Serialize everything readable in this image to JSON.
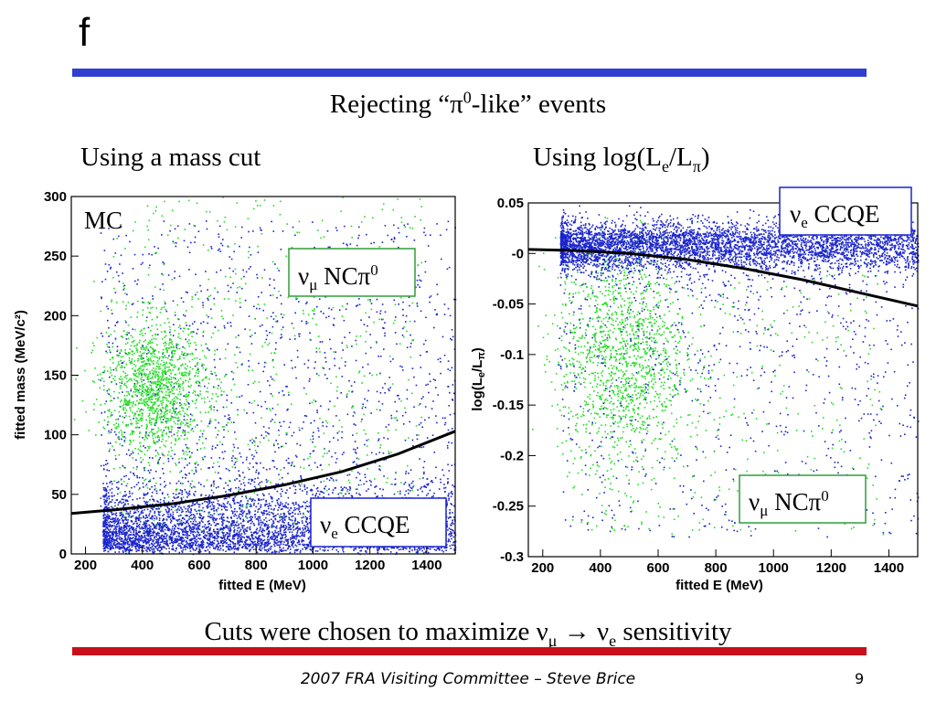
{
  "slide": {
    "letter": "f",
    "subtitle": "Rejecting “π⁰-like” events",
    "left_heading": "Using a mass cut",
    "right_heading": "Using log(Lₑ/L_π)",
    "conclusion": "Cuts were chosen to maximize ν_μ → νₑ sensitivity",
    "footer": "2007 FRA Visiting Committee – Steve Brice",
    "page_number": "9",
    "rule_colors": {
      "top": "#2f3fd0",
      "bottom": "#c8101a"
    }
  },
  "chart_data": [
    {
      "type": "scatter",
      "xlabel": "fitted E (MeV)",
      "ylabel": "fitted mass (MeV/c²)",
      "xlim": [
        150,
        1500
      ],
      "ylim": [
        0,
        300
      ],
      "x_ticks": [
        200,
        400,
        600,
        800,
        1000,
        1200,
        1400
      ],
      "y_ticks": [
        0,
        50,
        100,
        150,
        200,
        250,
        300
      ],
      "annotation": "MC",
      "series": [
        {
          "name": "ν_μ NCπ⁰",
          "color": "#22dd22",
          "region": "clustered near E 300–600 MeV, mass 100–180 MeV/c²"
        },
        {
          "name": "νₑ CCQE",
          "color": "#1a24cc",
          "region": "dense at mass 0–50 MeV/c², E 250–1500 MeV"
        }
      ],
      "cut_curve": {
        "x": [
          150,
          300,
          500,
          700,
          900,
          1100,
          1300,
          1500
        ],
        "y": [
          34,
          37,
          42,
          49,
          58,
          69,
          84,
          103
        ]
      },
      "legend_boxes": [
        {
          "label": "ν_μ NCπ⁰",
          "color": "#2e9d3c"
        },
        {
          "label": "νₑ CCQE",
          "color": "#1a24cc"
        }
      ]
    },
    {
      "type": "scatter",
      "xlabel": "fitted E (MeV)",
      "ylabel": "log(Lₑ/L_π)",
      "xlim": [
        150,
        1500
      ],
      "ylim": [
        -0.3,
        0.05
      ],
      "x_ticks": [
        200,
        400,
        600,
        800,
        1000,
        1200,
        1400
      ],
      "y_ticks": [
        0.05,
        0,
        -0.05,
        -0.1,
        -0.15,
        -0.2,
        -0.25,
        -0.3
      ],
      "series": [
        {
          "name": "νₑ CCQE",
          "color": "#1a24cc",
          "region": "band near log ratio −0.02 to 0.02 across E"
        },
        {
          "name": "ν_μ NCπ⁰",
          "color": "#22dd22",
          "region": "spread below −0.05, concentrated at E 300–700 MeV"
        }
      ],
      "cut_curve": {
        "x": [
          150,
          300,
          500,
          700,
          900,
          1100,
          1300,
          1500
        ],
        "y": [
          0.004,
          0.003,
          0.0,
          -0.006,
          -0.015,
          -0.026,
          -0.039,
          -0.052
        ]
      },
      "legend_boxes": [
        {
          "label": "νₑ CCQE",
          "color": "#1a24cc"
        },
        {
          "label": "ν_μ NCπ⁰",
          "color": "#2e9d3c"
        }
      ]
    }
  ]
}
